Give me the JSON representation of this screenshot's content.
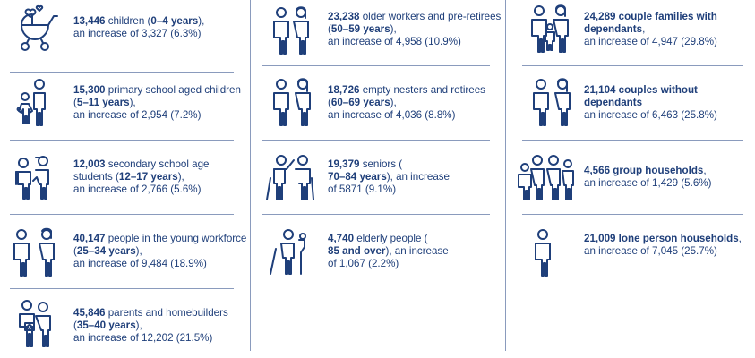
{
  "columns": [
    {
      "items": [
        {
          "icon": "stroller-icon",
          "number": "13,446",
          "pre": " children (",
          "bold": "0–4 years",
          "post": "),",
          "increase": "an increase of 3,327 (6.3%)"
        },
        {
          "icon": "child-with-parent-icon",
          "number": "15,300",
          "pre": " primary school aged children (",
          "bold": "5–11 years",
          "post": "),",
          "increase": "an increase of 2,954 (7.2%)"
        },
        {
          "icon": "teenagers-icon",
          "number": "12,003",
          "pre": " secondary school age students (",
          "bold": "12–17 years",
          "post": "),",
          "increase": "an increase of 2,766 (5.6%)"
        },
        {
          "icon": "young-adults-icon",
          "number": "40,147",
          "pre": " people in the young workforce (",
          "bold": "25–34 years",
          "post": "),",
          "increase": "an increase of 9,484 (18.9%)"
        },
        {
          "icon": "parents-with-baby-icon",
          "number": "45,846",
          "pre": " parents and homebuilders (",
          "bold": "35–40 years",
          "post": "),",
          "increase": "an increase of 12,202 (21.5%)"
        }
      ]
    },
    {
      "items": [
        {
          "icon": "older-couple-icon",
          "number": "23,238",
          "pre": " older workers and pre-retirees (",
          "bold": "50–59 years",
          "post": "),",
          "increase": "an increase of 4,958 (10.9%)"
        },
        {
          "icon": "empty-nesters-icon",
          "number": "18,726",
          "pre": " empty nesters and retirees (",
          "bold": "60–69 years",
          "post": "),",
          "increase": "an increase of 4,036 (8.8%)"
        },
        {
          "icon": "seniors-with-canes-icon",
          "number": "19,379",
          "pre": " seniors (",
          "bold": "70–84 years",
          "post": "), an increase",
          "increase": "of 5871 (9.1%)"
        },
        {
          "icon": "elderly-with-walker-icon",
          "number": "4,740",
          "pre": " elderly people (",
          "bold": "85 and over",
          "post": "), an increase",
          "increase": "of 1,067 (2.2%)"
        }
      ]
    },
    {
      "items": [
        {
          "icon": "couple-with-child-icon",
          "bold_line": "24,289 couple families with dependants",
          "increase": "an increase of 4,947 (29.8%)"
        },
        {
          "icon": "couple-icon",
          "bold_line": "21,104 couples without dependants",
          "increase": "an increase of 6,463 (25.8%)"
        },
        {
          "icon": "group-household-icon",
          "bold_line": "4,566 group households",
          "increase": "an increase of 1,429 (5.6%)"
        },
        {
          "icon": "lone-person-icon",
          "bold_line": "21,009 lone person households",
          "increase": "an increase of 7,045 (25.7%)"
        }
      ]
    }
  ]
}
